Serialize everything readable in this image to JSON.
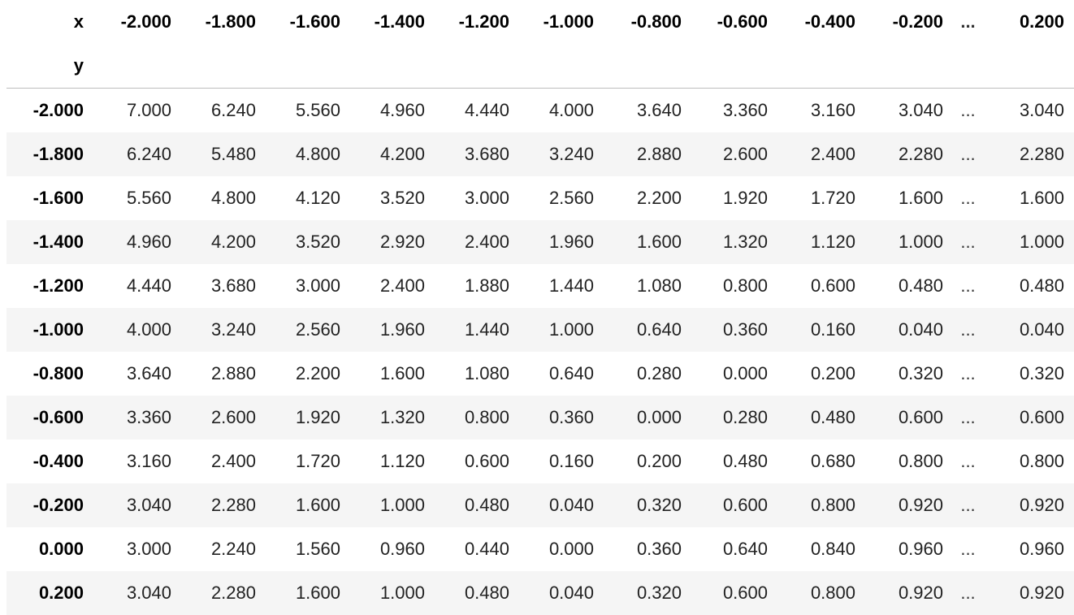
{
  "table": {
    "columns_name": "x",
    "index_name": "y",
    "columns": [
      "-2.000",
      "-1.800",
      "-1.600",
      "-1.400",
      "-1.200",
      "-1.000",
      "-0.800",
      "-0.600",
      "-0.400",
      "-0.200",
      "...",
      "0.200"
    ],
    "rows": [
      {
        "index": "-2.000",
        "values": [
          "7.000",
          "6.240",
          "5.560",
          "4.960",
          "4.440",
          "4.000",
          "3.640",
          "3.360",
          "3.160",
          "3.040",
          "...",
          "3.040"
        ]
      },
      {
        "index": "-1.800",
        "values": [
          "6.240",
          "5.480",
          "4.800",
          "4.200",
          "3.680",
          "3.240",
          "2.880",
          "2.600",
          "2.400",
          "2.280",
          "...",
          "2.280"
        ]
      },
      {
        "index": "-1.600",
        "values": [
          "5.560",
          "4.800",
          "4.120",
          "3.520",
          "3.000",
          "2.560",
          "2.200",
          "1.920",
          "1.720",
          "1.600",
          "...",
          "1.600"
        ]
      },
      {
        "index": "-1.400",
        "values": [
          "4.960",
          "4.200",
          "3.520",
          "2.920",
          "2.400",
          "1.960",
          "1.600",
          "1.320",
          "1.120",
          "1.000",
          "...",
          "1.000"
        ]
      },
      {
        "index": "-1.200",
        "values": [
          "4.440",
          "3.680",
          "3.000",
          "2.400",
          "1.880",
          "1.440",
          "1.080",
          "0.800",
          "0.600",
          "0.480",
          "...",
          "0.480"
        ]
      },
      {
        "index": "-1.000",
        "values": [
          "4.000",
          "3.240",
          "2.560",
          "1.960",
          "1.440",
          "1.000",
          "0.640",
          "0.360",
          "0.160",
          "0.040",
          "...",
          "0.040"
        ]
      },
      {
        "index": "-0.800",
        "values": [
          "3.640",
          "2.880",
          "2.200",
          "1.600",
          "1.080",
          "0.640",
          "0.280",
          "0.000",
          "0.200",
          "0.320",
          "...",
          "0.320"
        ]
      },
      {
        "index": "-0.600",
        "values": [
          "3.360",
          "2.600",
          "1.920",
          "1.320",
          "0.800",
          "0.360",
          "0.000",
          "0.280",
          "0.480",
          "0.600",
          "...",
          "0.600"
        ]
      },
      {
        "index": "-0.400",
        "values": [
          "3.160",
          "2.400",
          "1.720",
          "1.120",
          "0.600",
          "0.160",
          "0.200",
          "0.480",
          "0.680",
          "0.800",
          "...",
          "0.800"
        ]
      },
      {
        "index": "-0.200",
        "values": [
          "3.040",
          "2.280",
          "1.600",
          "1.000",
          "0.480",
          "0.040",
          "0.320",
          "0.600",
          "0.800",
          "0.920",
          "...",
          "0.920"
        ]
      },
      {
        "index": "0.000",
        "values": [
          "3.000",
          "2.240",
          "1.560",
          "0.960",
          "0.440",
          "0.000",
          "0.360",
          "0.640",
          "0.840",
          "0.960",
          "...",
          "0.960"
        ]
      },
      {
        "index": "0.200",
        "values": [
          "3.040",
          "2.280",
          "1.600",
          "1.000",
          "0.480",
          "0.040",
          "0.320",
          "0.600",
          "0.800",
          "0.920",
          "...",
          "0.920"
        ]
      }
    ]
  },
  "colors": {
    "header_rule": "#bdbdbd",
    "stripe_row": "#f5f5f5",
    "background": "#ffffff"
  }
}
